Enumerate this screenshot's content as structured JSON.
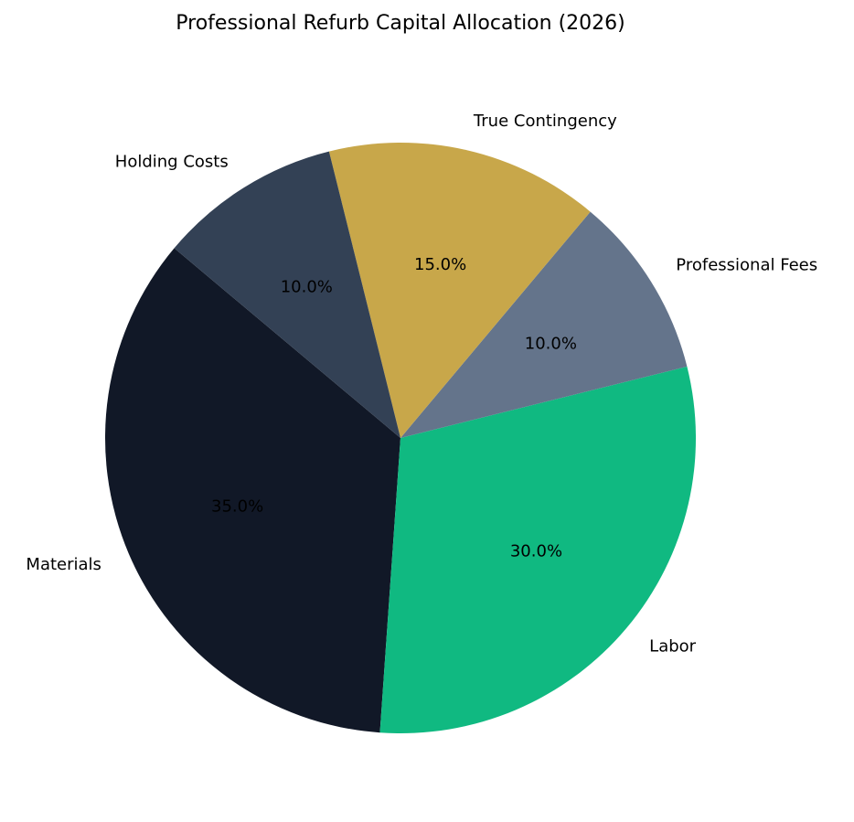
{
  "chart_data": {
    "type": "pie",
    "title": "Professional Refurb Capital Allocation (2026)",
    "categories": [
      "Materials",
      "Labor",
      "Professional Fees",
      "True Contingency",
      "Holding Costs"
    ],
    "values": [
      35,
      30,
      10,
      15,
      10
    ],
    "value_labels": [
      "35.0%",
      "30.0%",
      "10.0%",
      "15.0%",
      "10.0%"
    ],
    "colors": [
      "#111827",
      "#10b981",
      "#64748b",
      "#c8a74a",
      "#334155"
    ]
  }
}
